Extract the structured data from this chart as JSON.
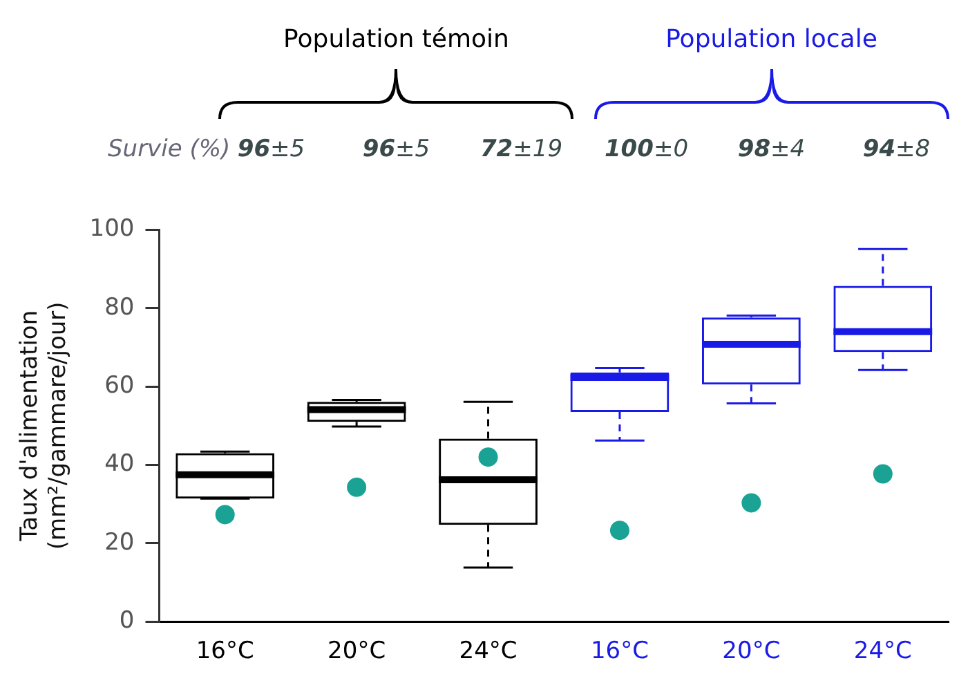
{
  "chart_data": {
    "type": "box",
    "categories": [
      "16°C",
      "20°C",
      "24°C",
      "16°C",
      "20°C",
      "24°C"
    ],
    "ylabel": "Taux d'alimentation\n(mm²/gammare/jour)",
    "ylim": [
      0,
      100
    ],
    "yticks": [
      0,
      20,
      40,
      60,
      80,
      100
    ],
    "grid": false,
    "legend": false,
    "annotations": [
      "Population témoin",
      "Population locale",
      "Survie (%)",
      "96±5",
      "96±5",
      "72±19",
      "100±0",
      "98±4",
      "94±8"
    ],
    "series": [
      {
        "colors": [
          "#000000",
          "#000000",
          "#000000",
          "#1a1ae6",
          "#1a1ae6",
          "#1a1ae6"
        ],
        "boxes": [
          {
            "low": 31.4,
            "q1": 31.4,
            "median": 37.5,
            "q3": 43,
            "high": 43.4
          },
          {
            "low": 49.8,
            "q1": 51,
            "median": 54.1,
            "q3": 56.1,
            "high": 56.6
          },
          {
            "low": 13.8,
            "q1": 24.7,
            "median": 36.2,
            "q3": 46.7,
            "high": 56.1
          },
          {
            "low": 46.2,
            "q1": 53.5,
            "median": 62.3,
            "q3": 63.6,
            "high": 64.7
          },
          {
            "low": 55.7,
            "q1": 60.5,
            "median": 70.8,
            "q3": 77.6,
            "high": 78.1
          },
          {
            "low": 64.2,
            "q1": 68.8,
            "median": 74,
            "q3": 85.7,
            "high": 95.1
          }
        ]
      },
      {
        "type": "scatter",
        "color": "#1aa394",
        "marker": "circle",
        "values": [
          27.3,
          34.3,
          42,
          23.3,
          30.3,
          37.7
        ]
      }
    ]
  }
}
